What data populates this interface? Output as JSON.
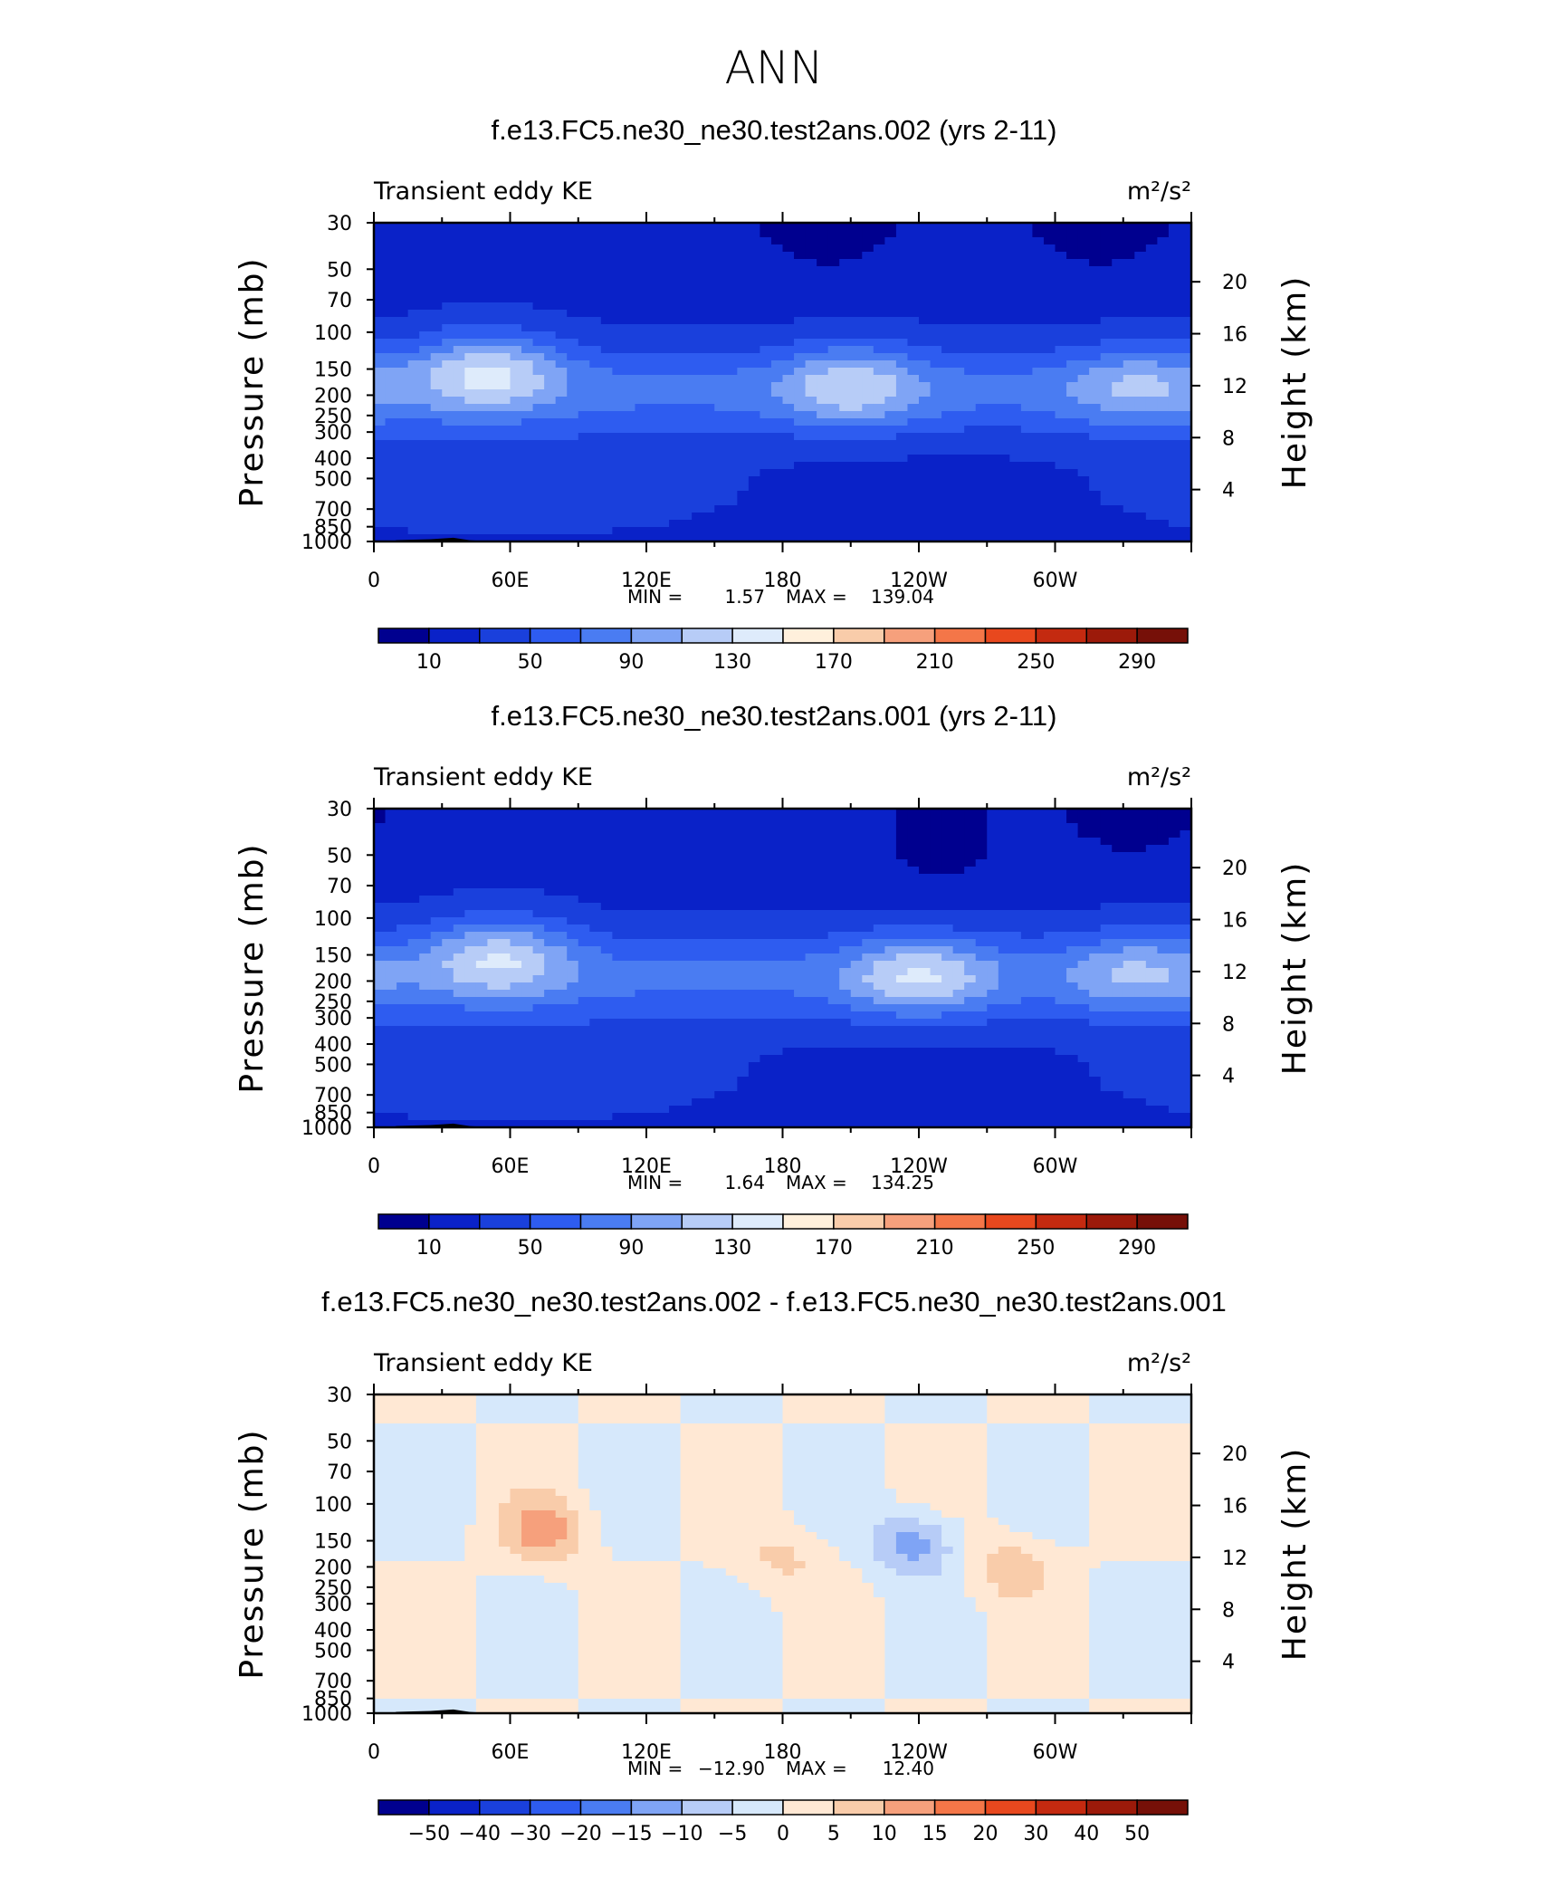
{
  "main_title": "ANN",
  "colors": {
    "ke_scale": [
      "#00008f",
      "#0a22c8",
      "#1a40dc",
      "#2e5cf0",
      "#4a7cf2",
      "#7fa4f5",
      "#b7ccf7",
      "#deebfb",
      "#fff0dc",
      "#f9ccaa",
      "#f6a07c",
      "#f47648",
      "#e8481e",
      "#c42a10",
      "#9c1a0a",
      "#761008"
    ],
    "diff_scale": [
      "#00008f",
      "#0a22c8",
      "#1a40dc",
      "#2e5cf0",
      "#4a7cf2",
      "#7fa4f5",
      "#b7ccf7",
      "#d6e8fb",
      "#ffe8d4",
      "#f9ccaa",
      "#f6a07c",
      "#f47648",
      "#e8481e",
      "#c42a10",
      "#9c1a0a",
      "#761008"
    ],
    "terrain": "#000000"
  },
  "panels": [
    {
      "title": "f.e13.FC5.ne30_ne30.test2ans.002 (yrs 2-11)",
      "left_label": "Transient eddy KE",
      "right_label": "m²/s²",
      "ylabel": "Pressure (mb)",
      "ylabel_right": "Height (km)",
      "stats": {
        "min_label": "MIN =",
        "min": "1.57",
        "max_label": "MAX =",
        "max": "139.04"
      },
      "colorbar_labels": [
        "10",
        "50",
        "90",
        "130",
        "170",
        "210",
        "250",
        "290"
      ]
    },
    {
      "title": "f.e13.FC5.ne30_ne30.test2ans.001 (yrs 2-11)",
      "left_label": "Transient eddy KE",
      "right_label": "m²/s²",
      "ylabel": "Pressure (mb)",
      "ylabel_right": "Height (km)",
      "stats": {
        "min_label": "MIN =",
        "min": "1.64",
        "max_label": "MAX =",
        "max": "134.25"
      },
      "colorbar_labels": [
        "10",
        "50",
        "90",
        "130",
        "170",
        "210",
        "250",
        "290"
      ]
    },
    {
      "title": "f.e13.FC5.ne30_ne30.test2ans.002 - f.e13.FC5.ne30_ne30.test2ans.001",
      "left_label": "Transient eddy KE",
      "right_label": "m²/s²",
      "ylabel": "Pressure (mb)",
      "ylabel_right": "Height (km)",
      "stats": {
        "min_label": "MIN =",
        "min": "−12.90",
        "max_label": "MAX =",
        "max": "12.40"
      },
      "colorbar_labels": [
        "−50",
        "−40",
        "−30",
        "−20",
        "−15",
        "−10",
        "−5",
        "0",
        "5",
        "10",
        "15",
        "20",
        "30",
        "40",
        "50"
      ]
    }
  ],
  "chart_data": [
    {
      "type": "heatmap",
      "title": "f.e13.FC5.ne30_ne30.test2ans.002 (yrs 2-11)",
      "variable": "Transient eddy KE",
      "units": "m²/s²",
      "xlabel": "",
      "ylabel": "Pressure (mb)",
      "ylabel_right": "Height (km)",
      "x_ticks": [
        "0",
        "60E",
        "120E",
        "180",
        "120W",
        "60W"
      ],
      "x_tick_lon": [
        0,
        60,
        120,
        180,
        240,
        300
      ],
      "xlim": [
        0,
        360
      ],
      "y_ticks": [
        30,
        50,
        70,
        100,
        150,
        200,
        250,
        300,
        400,
        500,
        700,
        850,
        1000
      ],
      "ylim": [
        1000,
        30
      ],
      "y_scale": "log",
      "y_right_ticks": [
        20,
        16,
        12,
        8,
        4
      ],
      "contour_levels": [
        10,
        30,
        50,
        70,
        90,
        110,
        130,
        150,
        170,
        190,
        210,
        230,
        250,
        270,
        290
      ],
      "min": 1.57,
      "max": 139.04,
      "features": [
        {
          "kind": "max",
          "lon": 50,
          "p": 150,
          "value": 135
        },
        {
          "kind": "max",
          "lon": 210,
          "p": 180,
          "value": 130
        },
        {
          "kind": "max",
          "lon": 337,
          "p": 180,
          "value": 115
        },
        {
          "kind": "min",
          "lon": 200,
          "p": 40,
          "value": 5
        },
        {
          "kind": "min",
          "lon": 320,
          "p": 40,
          "value": 5
        }
      ]
    },
    {
      "type": "heatmap",
      "title": "f.e13.FC5.ne30_ne30.test2ans.001 (yrs 2-11)",
      "variable": "Transient eddy KE",
      "units": "m²/s²",
      "xlabel": "",
      "ylabel": "Pressure (mb)",
      "ylabel_right": "Height (km)",
      "x_ticks": [
        "0",
        "60E",
        "120E",
        "180",
        "120W",
        "60W"
      ],
      "x_tick_lon": [
        0,
        60,
        120,
        180,
        240,
        300
      ],
      "xlim": [
        0,
        360
      ],
      "y_ticks": [
        30,
        50,
        70,
        100,
        150,
        200,
        250,
        300,
        400,
        500,
        700,
        850,
        1000
      ],
      "ylim": [
        1000,
        30
      ],
      "y_scale": "log",
      "y_right_ticks": [
        20,
        16,
        12,
        8,
        4
      ],
      "contour_levels": [
        10,
        30,
        50,
        70,
        90,
        110,
        130,
        150,
        170,
        190,
        210,
        230,
        250,
        270,
        290
      ],
      "min": 1.64,
      "max": 134.25,
      "features": [
        {
          "kind": "max",
          "lon": 55,
          "p": 150,
          "value": 130
        },
        {
          "kind": "max",
          "lon": 240,
          "p": 190,
          "value": 134
        },
        {
          "kind": "max",
          "lon": 337,
          "p": 180,
          "value": 115
        },
        {
          "kind": "min",
          "lon": 250,
          "p": 50,
          "value": 5
        },
        {
          "kind": "min",
          "lon": 335,
          "p": 40,
          "value": 5
        }
      ]
    },
    {
      "type": "heatmap",
      "title": "f.e13.FC5.ne30_ne30.test2ans.002 - f.e13.FC5.ne30_ne30.test2ans.001",
      "variable": "Transient eddy KE",
      "units": "m²/s²",
      "xlabel": "",
      "ylabel": "Pressure (mb)",
      "ylabel_right": "Height (km)",
      "x_ticks": [
        "0",
        "60E",
        "120E",
        "180",
        "120W",
        "60W"
      ],
      "x_tick_lon": [
        0,
        60,
        120,
        180,
        240,
        300
      ],
      "xlim": [
        0,
        360
      ],
      "y_ticks": [
        30,
        50,
        70,
        100,
        150,
        200,
        250,
        300,
        400,
        500,
        700,
        850,
        1000
      ],
      "ylim": [
        1000,
        30
      ],
      "y_scale": "log",
      "y_right_ticks": [
        20,
        16,
        12,
        8,
        4
      ],
      "contour_levels": [
        -50,
        -40,
        -30,
        -20,
        -15,
        -10,
        -5,
        0,
        5,
        10,
        15,
        20,
        30,
        40,
        50
      ],
      "min": -12.9,
      "max": 12.4,
      "features": [
        {
          "kind": "max",
          "lon": 75,
          "p": 135,
          "value": 12.4
        },
        {
          "kind": "min",
          "lon": 238,
          "p": 155,
          "value": -12.9
        },
        {
          "kind": "max",
          "lon": 280,
          "p": 200,
          "value": 8
        },
        {
          "kind": "max",
          "lon": 180,
          "p": 185,
          "value": 6
        }
      ]
    }
  ]
}
